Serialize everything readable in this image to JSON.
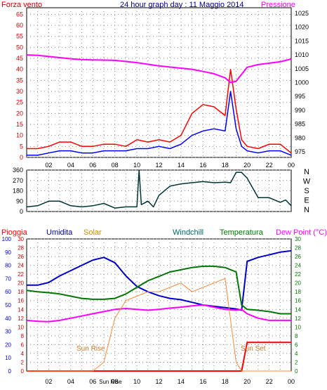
{
  "header": {
    "left_label": "Forza vento",
    "title": "24 hour graph day : 11 Maggio 2014",
    "right_label": "Pressione"
  },
  "colors": {
    "wind": "#ff0000",
    "gust": "#0000ff",
    "pressure": "#ff00ff",
    "winddir": "#003333",
    "humidity": "#0000cc",
    "temperature": "#007700",
    "dewpoint": "#ff00ff",
    "solar": "#ff8833",
    "rain": "#ff0000"
  },
  "x_ticks": [
    "02",
    "04",
    "06",
    "08",
    "10",
    "12",
    "14",
    "16",
    "18",
    "20",
    "22",
    "00"
  ],
  "chart_data": [
    {
      "type": "line",
      "name_key": "wind-pressure",
      "ylim_left": [
        0,
        68
      ],
      "yticks_left": [
        0,
        5,
        10,
        15,
        20,
        25,
        30,
        35,
        40,
        45,
        50,
        55,
        60,
        65
      ],
      "ylim_right": [
        973,
        1027
      ],
      "yticks_right": [
        975,
        980,
        985,
        990,
        995,
        1000,
        1005,
        1010,
        1015,
        1020,
        1025
      ],
      "x_hours": [
        0,
        1,
        2,
        3,
        4,
        5,
        6,
        7,
        8,
        9,
        10,
        11,
        12,
        13,
        14,
        15,
        16,
        17,
        18,
        18.5,
        19,
        19.5,
        20,
        21,
        22,
        23,
        24
      ],
      "series": [
        {
          "key": "wind",
          "axis": "left",
          "values": [
            4,
            4,
            5,
            7,
            7,
            5,
            5,
            6,
            6,
            5,
            8,
            7,
            8,
            7,
            10,
            20,
            24,
            23,
            19,
            40,
            22,
            8,
            5,
            4,
            6,
            6,
            2
          ]
        },
        {
          "key": "gust",
          "axis": "left",
          "values": [
            1,
            1,
            2,
            3,
            3,
            2,
            2,
            3,
            3,
            3,
            4,
            4,
            5,
            4,
            6,
            10,
            12,
            13,
            12,
            30,
            13,
            5,
            3,
            2,
            3,
            3,
            1
          ]
        },
        {
          "key": "pressure",
          "axis": "right",
          "values": [
            1010,
            1009.8,
            1009.4,
            1009,
            1008.6,
            1008.3,
            1008.2,
            1008.1,
            1008,
            1007.6,
            1007.2,
            1006.6,
            1006,
            1005.6,
            1005.2,
            1004.8,
            1004,
            1003.2,
            1001.7,
            1000,
            1000.5,
            1003,
            1005.5,
            1006.5,
            1007,
            1007.5,
            1008.5
          ]
        }
      ]
    },
    {
      "type": "line",
      "name_key": "wind-direction",
      "ylim": [
        0,
        360
      ],
      "yticks": [
        0,
        90,
        180,
        270,
        360
      ],
      "right_labels": [
        "N",
        "W",
        "S",
        "E",
        "N"
      ],
      "x_hours": [
        0,
        1,
        2,
        3,
        4,
        5,
        6,
        7,
        8,
        9,
        10,
        10.2,
        10.4,
        11,
        11.5,
        12,
        13,
        14,
        15,
        16,
        17,
        18,
        18.5,
        19,
        19.5,
        20,
        21,
        22,
        23,
        23.5,
        24
      ],
      "values": [
        40,
        50,
        90,
        90,
        50,
        40,
        50,
        70,
        30,
        40,
        40,
        360,
        60,
        90,
        40,
        140,
        220,
        240,
        250,
        260,
        250,
        255,
        250,
        340,
        340,
        290,
        120,
        120,
        80,
        100,
        50
      ]
    },
    {
      "type": "line",
      "name_key": "hum-temp",
      "ylim_hum": [
        0,
        100
      ],
      "yticks_hum": [
        0,
        10,
        20,
        30,
        40,
        50,
        60,
        70,
        80,
        90,
        100
      ],
      "ylim_rain": [
        0,
        30
      ],
      "yticks_rain": [
        0,
        2,
        4,
        6,
        8,
        10,
        12,
        14,
        16,
        18,
        20,
        22,
        24,
        26,
        28,
        30
      ],
      "ylim_temp": [
        0,
        30
      ],
      "yticks_temp": [
        0,
        2,
        4,
        6,
        8,
        10,
        12,
        14,
        16,
        18,
        20,
        22,
        24,
        26,
        28,
        30
      ],
      "x_hours": [
        0,
        1,
        2,
        3,
        4,
        5,
        6,
        7,
        8,
        9,
        10,
        11,
        12,
        13,
        14,
        15,
        16,
        17,
        18,
        19,
        19.5,
        20,
        21,
        22,
        23,
        24
      ],
      "series": [
        {
          "key": "humidity",
          "axis": "hum",
          "values": [
            65,
            65,
            67,
            72,
            76,
            80,
            84,
            86,
            82,
            72,
            64,
            60,
            57,
            55,
            54,
            52,
            50,
            49,
            48,
            47,
            46,
            83,
            86,
            88,
            90,
            91
          ]
        },
        {
          "key": "temperature",
          "axis": "temp",
          "values": [
            18.3,
            18,
            17.8,
            17.5,
            17,
            16.5,
            16.3,
            16.3,
            16.5,
            17.5,
            19,
            20.5,
            21.5,
            22.5,
            23,
            23.5,
            23.8,
            23.8,
            23.5,
            22.5,
            15,
            14,
            13.8,
            13.5,
            13,
            13
          ]
        },
        {
          "key": "dewpoint",
          "axis": "temp",
          "values": [
            11.5,
            11.3,
            11.2,
            11.5,
            12,
            12.5,
            13,
            13.5,
            14,
            14.2,
            14,
            13.8,
            14,
            14.3,
            14.5,
            14.8,
            15,
            14.5,
            14,
            13.8,
            14,
            13,
            12,
            11.5,
            11.5,
            11.5
          ]
        },
        {
          "key": "solar",
          "axis": "temp",
          "values": [
            0,
            0,
            0,
            0,
            0,
            0,
            0,
            2,
            12,
            16,
            17,
            18,
            18,
            19,
            20,
            18,
            19,
            20,
            21,
            2,
            0,
            0,
            0,
            0,
            0,
            0
          ]
        }
      ],
      "rain": {
        "x_hours": [
          0,
          19.5,
          20,
          22.2,
          24
        ],
        "values": [
          0,
          0,
          6.5,
          6.5,
          6.5
        ]
      }
    }
  ],
  "bottom": {
    "labels": {
      "rain": "Pioggia",
      "humidity": "Umidita",
      "solar": "Solar",
      "windchill": "Windchill",
      "temperature": "Temperatura",
      "dewpoint": "Dew Point (°C)"
    },
    "sun_rise_tick": "Sun Rise",
    "sun_rise_label": "Sun Rise",
    "sun_set_label": "Sun Set"
  }
}
